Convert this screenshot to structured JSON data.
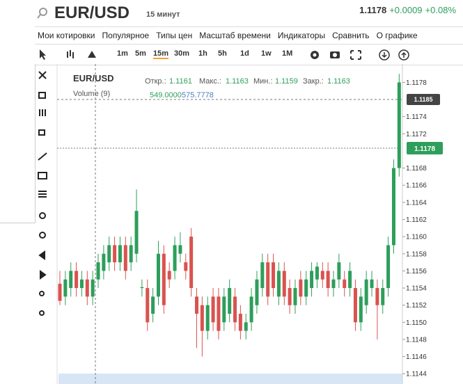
{
  "header": {
    "symbol": "EUR/USD",
    "interval": "15 минут",
    "price": "1.1178",
    "change": "+0.0009",
    "change_pct": "+0.08%"
  },
  "menu": [
    "Мои котировки",
    "Популярное",
    "Типы цен",
    "Масштаб времени",
    "Индикаторы",
    "Сравнить",
    "О графике"
  ],
  "toolbar": {
    "intervals": [
      "1m",
      "5m",
      "15m",
      "30m",
      "1h",
      "5h",
      "1d",
      "1w",
      "1M"
    ]
  },
  "legend": {
    "symbol": "EUR/USD",
    "open_label": "Откр.:",
    "open": "1.1161",
    "high_label": "Макс.:",
    "high": "1.1163",
    "low_label": "Мин.:",
    "low": "1.1159",
    "close_label": "Закр.:",
    "close": "1.1163",
    "volume_label": "Volume (9)",
    "volume_values": [
      "549.0000",
      "575.7778"
    ]
  },
  "chart": {
    "type": "candlestick",
    "ylim": [
      1.11428,
      1.11799
    ],
    "yticks": [
      1.1178,
      1.1174,
      1.1172,
      1.1168,
      1.1166,
      1.1164,
      1.1162,
      {
        "value": 1.116,
        "label": "1.1160"
      },
      1.1158,
      1.1156,
      1.1154,
      1.1152,
      {
        "value": 1.115,
        "label": "1.1150"
      },
      1.1148,
      1.1146,
      1.1144
    ],
    "current_price": "1.1178",
    "crosshair_price": "1.1185",
    "open": [
      1.11545,
      1.1153,
      1.1154,
      1.1156,
      1.1154,
      1.1155,
      1.1153,
      1.1155,
      1.1156,
      1.1157,
      1.1159,
      1.1157,
      1.1159,
      1.1157,
      1.1158,
      1.1154,
      1.1154,
      1.1151,
      1.1153,
      1.1158,
      1.1156,
      1.1156,
      1.1158,
      1.1157,
      1.116,
      1.1153,
      1.1152,
      1.1149,
      1.1153,
      1.1153,
      1.115,
      1.1151,
      1.1153,
      1.1151,
      1.1149,
      1.115,
      1.1152,
      1.1154,
      1.1157,
      1.1157,
      1.1153,
      1.1156,
      1.1154,
      1.1152,
      1.1155,
      1.1153,
      1.1154,
      1.1155,
      1.1156,
      1.1156,
      1.1154,
      1.1155,
      1.1155,
      1.1154,
      1.1154,
      1.115,
      1.1152,
      1.1154,
      1.1154,
      1.1152,
      1.1154,
      1.1159,
      1.1168
    ],
    "high": [
      1.1156,
      1.1156,
      1.1157,
      1.1157,
      1.1156,
      1.1156,
      1.1156,
      1.1158,
      1.1159,
      1.116,
      1.116,
      1.116,
      1.116,
      1.116,
      1.11655,
      1.1155,
      1.1155,
      1.1154,
      1.11595,
      1.1159,
      1.1157,
      1.116,
      1.11605,
      1.1158,
      1.1161,
      1.1154,
      1.1153,
      1.1153,
      1.1154,
      1.1154,
      1.1154,
      1.1155,
      1.1154,
      1.1152,
      1.1151,
      1.1154,
      1.1156,
      1.1158,
      1.1158,
      1.1158,
      1.1157,
      1.1157,
      1.1155,
      1.1155,
      1.1156,
      1.1156,
      1.1157,
      1.1157,
      1.1157,
      1.1157,
      1.1156,
      1.1158,
      1.1156,
      1.1157,
      1.1155,
      1.1154,
      1.1156,
      1.1156,
      1.1155,
      1.1155,
      1.116,
      1.1169,
      1.1179
    ],
    "low": [
      1.1152,
      1.1152,
      1.1153,
      1.1153,
      1.1153,
      1.1152,
      1.1152,
      1.1154,
      1.1155,
      1.1156,
      1.1156,
      1.1156,
      1.1155,
      1.1156,
      1.1157,
      1.1153,
      1.1149,
      1.115,
      1.1152,
      1.1151,
      1.1154,
      1.1155,
      1.1157,
      1.1155,
      1.1153,
      1.1147,
      1.1146,
      1.1148,
      1.1149,
      1.1148,
      1.1149,
      1.115,
      1.1149,
      1.1148,
      1.1148,
      1.1149,
      1.1151,
      1.1153,
      1.1152,
      1.1153,
      1.1152,
      1.1152,
      1.1151,
      1.1151,
      1.1152,
      1.1152,
      1.1153,
      1.1154,
      1.1154,
      1.1153,
      1.1153,
      1.1154,
      1.1153,
      1.1153,
      1.1149,
      1.1149,
      1.1151,
      1.1153,
      1.1148,
      1.1151,
      1.1153,
      1.1158,
      1.1167
    ],
    "close": [
      1.11525,
      1.1155,
      1.1156,
      1.1154,
      1.1155,
      1.1153,
      1.1155,
      1.1157,
      1.1158,
      1.1159,
      1.1157,
      1.1159,
      1.1156,
      1.1159,
      1.1163,
      1.11541,
      1.115,
      1.1153,
      1.1158,
      1.1152,
      1.1155,
      1.1159,
      1.1159,
      1.1156,
      1.1154,
      1.1151,
      1.1149,
      1.1152,
      1.115,
      1.1149,
      1.1153,
      1.1154,
      1.115,
      1.1149,
      1.115,
      1.1153,
      1.1155,
      1.1157,
      1.1153,
      1.1154,
      1.1156,
      1.1153,
      1.1152,
      1.1154,
      1.1153,
      1.1155,
      1.1156,
      1.11565,
      1.1155,
      1.1154,
      1.1155,
      1.1157,
      1.1154,
      1.1156,
      1.115,
      1.1153,
      1.1155,
      1.1155,
      1.1152,
      1.1154,
      1.1159,
      1.1168,
      1.1178
    ]
  }
}
